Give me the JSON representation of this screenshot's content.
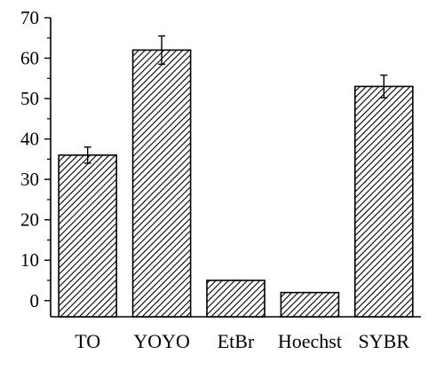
{
  "chart_data": {
    "type": "bar",
    "title": "",
    "xlabel": "",
    "ylabel": "",
    "categories": [
      "TO",
      "YOYO",
      "EtBr",
      "Hoechst",
      "SYBR"
    ],
    "values": [
      36,
      62,
      5,
      2,
      53
    ],
    "error": [
      2,
      3.5,
      0.2,
      0.1,
      2.8
    ],
    "ylim": [
      -4,
      70
    ],
    "yticks": [
      0,
      10,
      20,
      30,
      40,
      50,
      60,
      70
    ],
    "bar_pattern": "diagonal-hatch",
    "bar_color": "#000000",
    "background": "#ffffff",
    "grid": false,
    "legend": "none"
  }
}
